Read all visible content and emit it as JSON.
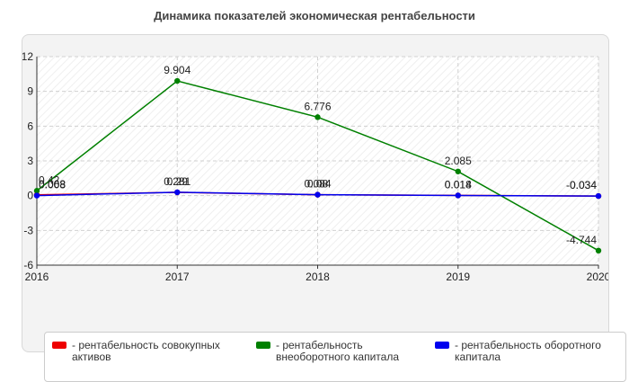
{
  "title": "Динамика показателей экономическая рентабельности",
  "chart_data": {
    "type": "line",
    "categories": [
      "2016",
      "2017",
      "2018",
      "2019",
      "2020"
    ],
    "yticks": [
      "12",
      "9",
      "6",
      "3",
      "0",
      "-3",
      "-6"
    ],
    "ylim": [
      -6,
      12
    ],
    "grid": true,
    "legend_position": "bottom",
    "series": [
      {
        "name": "- рентабельность совокупных активов",
        "color": "#ee0000",
        "values": [
          0.068,
          0.281,
          0.084,
          0.018,
          -0.034
        ],
        "labels": [
          "0.068",
          "0.281",
          "0.084",
          "0.018",
          "-0.034"
        ]
      },
      {
        "name": "- рентабельность внеоборотного капитала",
        "color": "#008000",
        "values": [
          0.42,
          9.904,
          6.776,
          2.085,
          -4.744
        ],
        "labels": [
          "0.42",
          "9.904",
          "6.776",
          "2.085",
          "-4.744"
        ]
      },
      {
        "name": "- рентабельность оборотного капитала",
        "color": "#0000ee",
        "values": [
          0.008,
          0.29,
          0.08,
          0.014,
          -0.034
        ],
        "labels": [
          "0.008",
          "0.29",
          "0.08",
          "0.014",
          "-0.034"
        ]
      }
    ]
  }
}
